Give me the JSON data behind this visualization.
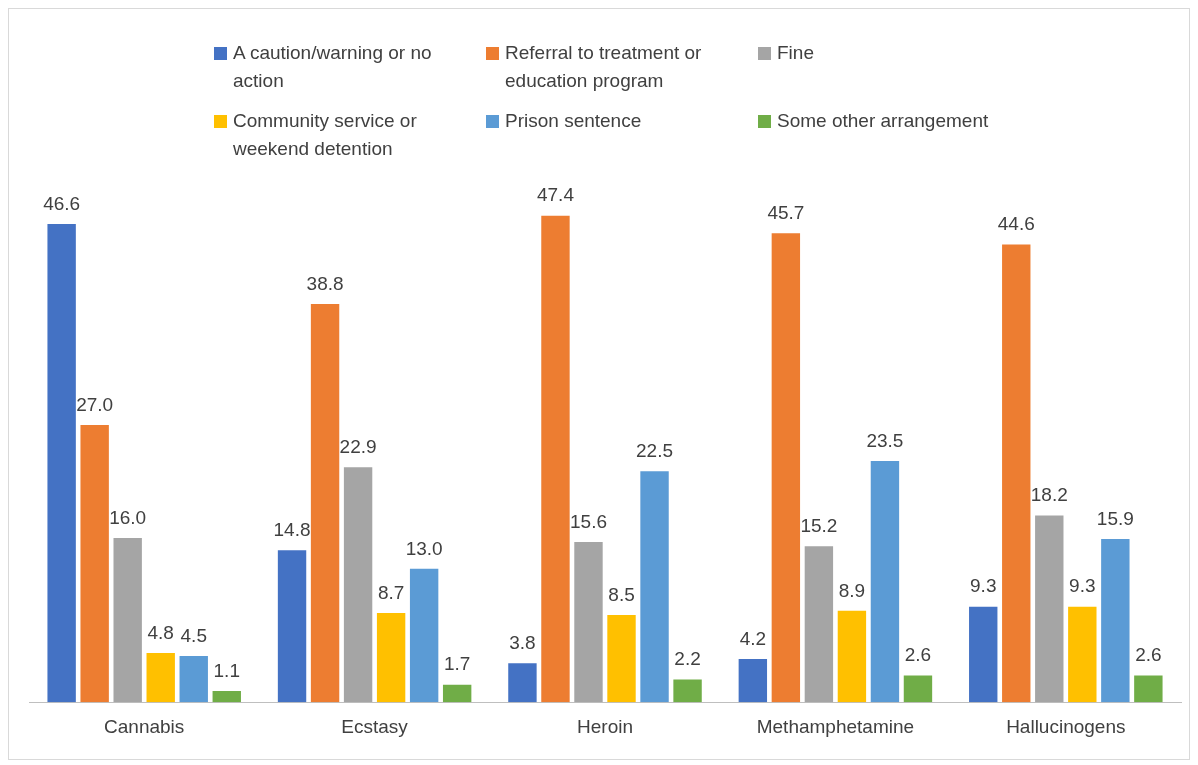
{
  "chart_data": {
    "type": "bar",
    "categories": [
      "Cannabis",
      "Ecstasy",
      "Heroin",
      "Methamphetamine",
      "Hallucinogens"
    ],
    "legend": "top",
    "grid": false,
    "series": [
      {
        "name": "A caution/warning or no action",
        "color": "#4472c4",
        "values": [
          46.6,
          14.8,
          3.8,
          4.2,
          9.3
        ],
        "value_labels": [
          "46.6",
          "14.8",
          "3.8",
          "4.2",
          "9.3"
        ]
      },
      {
        "name": "Referral to treatment or education program",
        "color": "#ed7d31",
        "values": [
          27.0,
          38.8,
          47.4,
          45.7,
          44.6
        ],
        "value_labels": [
          "27.0",
          "38.8",
          "47.4",
          "45.7",
          "44.6"
        ]
      },
      {
        "name": "Fine",
        "color": "#a5a5a5",
        "values": [
          16.0,
          22.9,
          15.6,
          15.2,
          18.2
        ],
        "value_labels": [
          "16.0",
          "22.9",
          "15.6",
          "15.2",
          "18.2"
        ]
      },
      {
        "name": "Community service or weekend detention",
        "color": "#ffc000",
        "values": [
          4.8,
          8.7,
          8.5,
          8.9,
          9.3
        ],
        "value_labels": [
          "4.8",
          "8.7",
          "8.5",
          "8.9",
          "9.3"
        ]
      },
      {
        "name": "Prison sentence",
        "color": "#5b9bd5",
        "values": [
          4.5,
          13.0,
          22.5,
          23.5,
          15.9
        ],
        "value_labels": [
          "4.5",
          "13.0",
          "22.5",
          "23.5",
          "15.9"
        ]
      },
      {
        "name": "Some other arrangement",
        "color": "#70ad47",
        "values": [
          1.1,
          1.7,
          2.2,
          2.6,
          2.6
        ],
        "value_labels": [
          "1.1",
          "1.7",
          "2.2",
          "2.6",
          "2.6"
        ]
      }
    ]
  }
}
